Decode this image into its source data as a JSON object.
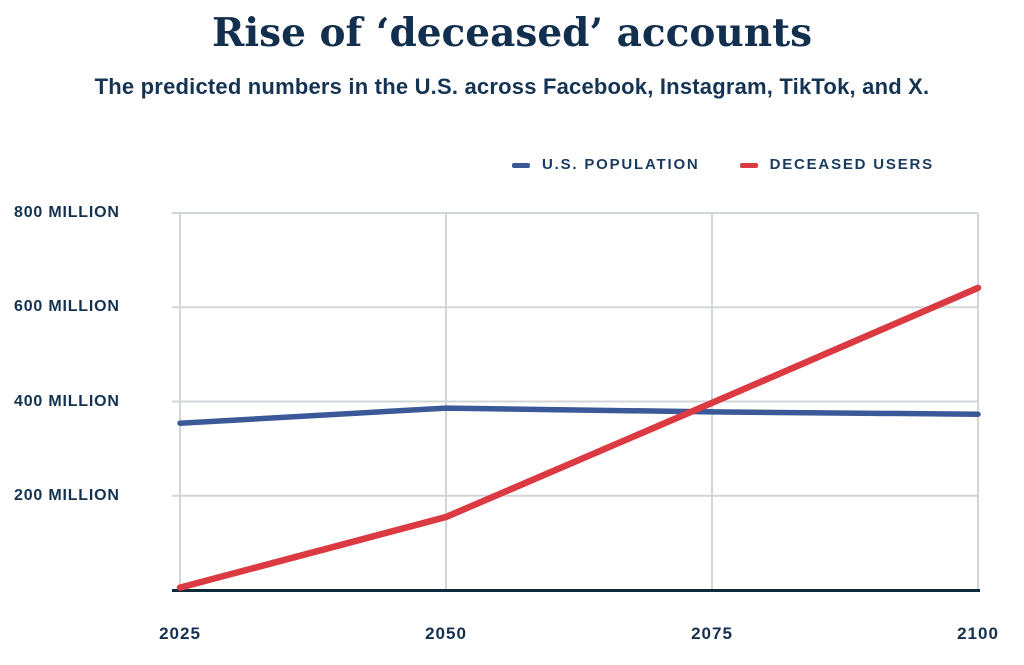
{
  "title": "Rise of ‘deceased’ accounts",
  "subtitle": "The predicted numbers in the U.S. across Facebook, Instagram, TikTok, and X.",
  "chart_data": {
    "type": "line",
    "x": [
      2025,
      2050,
      2075,
      2100
    ],
    "xtick_labels": [
      "2025",
      "2050",
      "2075",
      "2100"
    ],
    "series": [
      {
        "name": "U.S. POPULATION",
        "color": "#3B5998",
        "values": [
          354,
          386,
          378,
          373
        ]
      },
      {
        "name": "DECEASED USERS",
        "color": "#DC3A43",
        "values": [
          5,
          155,
          397,
          641
        ]
      }
    ],
    "unit": "million people",
    "ylim": [
      0,
      800
    ],
    "yticks": [
      200,
      400,
      600,
      800
    ],
    "ytick_labels": [
      "200 MILLION",
      "400 MILLION",
      "600 MILLION",
      "800 MILLION"
    ],
    "grid": true,
    "legend_position": "top"
  },
  "colors": {
    "background": "#FFFFFF",
    "title_text": "#122F4D",
    "label_text": "#14324F",
    "gridline": "#D3D6D8",
    "axis": "#0D2A3C"
  }
}
